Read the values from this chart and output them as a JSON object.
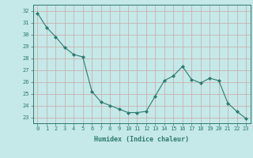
{
  "x": [
    0,
    1,
    2,
    3,
    4,
    5,
    6,
    7,
    8,
    9,
    10,
    11,
    12,
    13,
    14,
    15,
    16,
    17,
    18,
    19,
    20,
    21,
    22,
    23
  ],
  "y": [
    31.8,
    30.6,
    29.8,
    28.9,
    28.3,
    28.1,
    25.2,
    24.3,
    24.0,
    23.7,
    23.4,
    23.4,
    23.5,
    24.8,
    26.1,
    26.5,
    27.3,
    26.2,
    25.9,
    26.3,
    26.1,
    24.2,
    23.5,
    22.9
  ],
  "background_color": "#c5e8e8",
  "grid_color_major": "#c8a8a8",
  "line_color": "#2d7a6e",
  "marker_color": "#2d7a6e",
  "xlabel": "Humidex (Indice chaleur)",
  "ylim": [
    22.5,
    32.5
  ],
  "yticks": [
    23,
    24,
    25,
    26,
    27,
    28,
    29,
    30,
    31,
    32
  ],
  "xticks": [
    0,
    1,
    2,
    3,
    4,
    5,
    6,
    7,
    8,
    9,
    10,
    11,
    12,
    13,
    14,
    15,
    16,
    17,
    18,
    19,
    20,
    21,
    22,
    23
  ],
  "tick_fontsize": 5.0,
  "xlabel_fontsize": 6.0
}
